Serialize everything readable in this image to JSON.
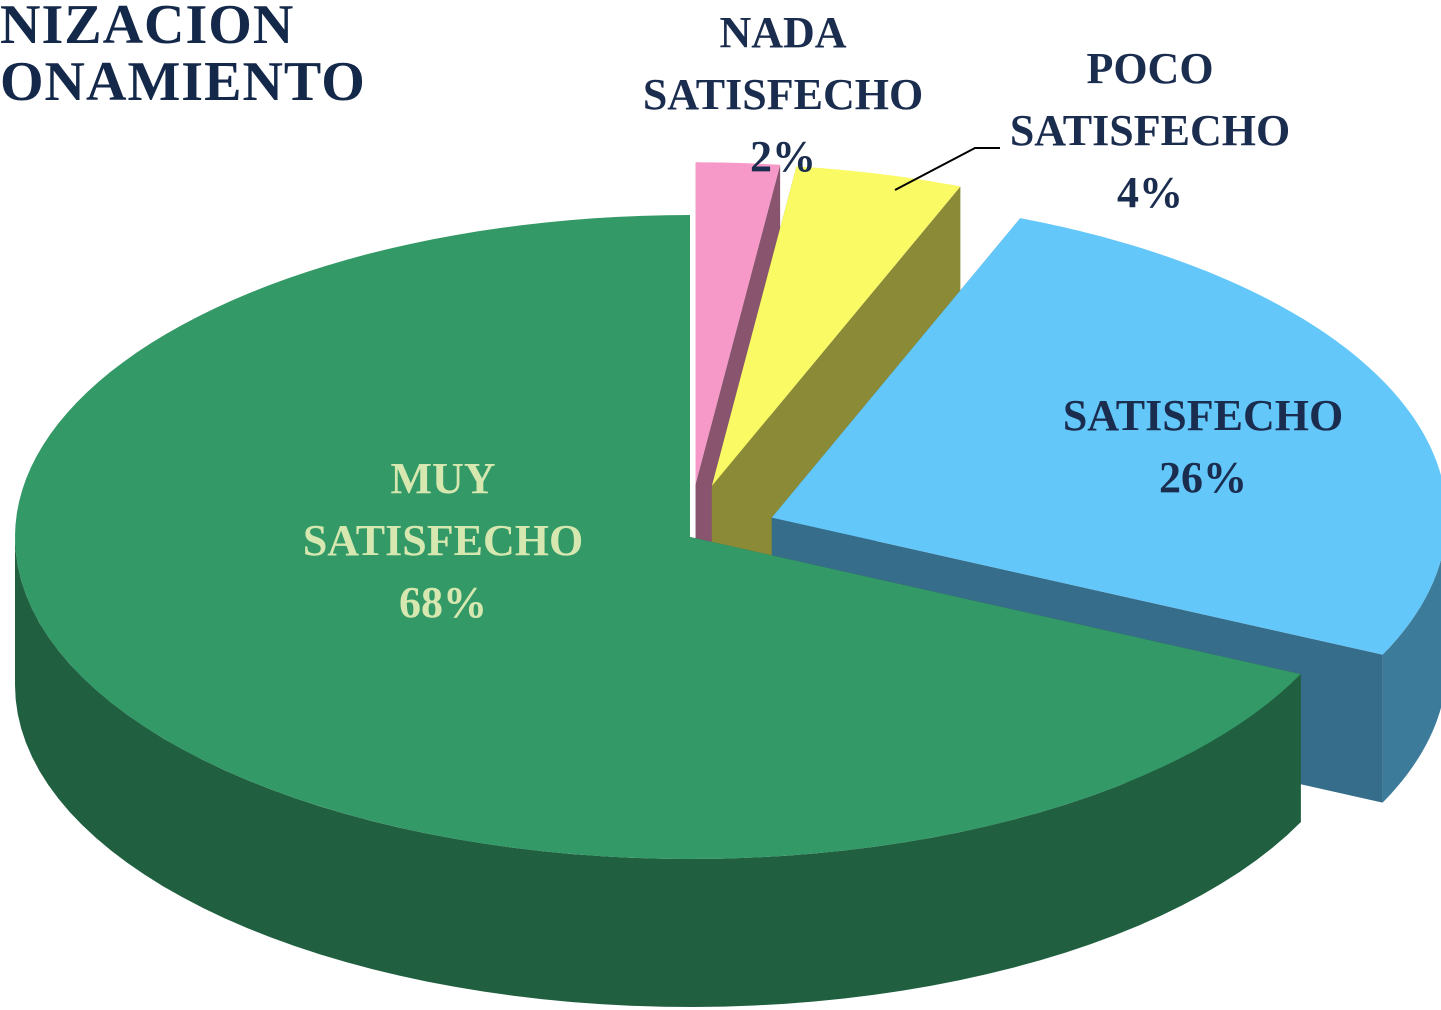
{
  "chart_data": {
    "type": "pie",
    "title_lines": [
      "NIZACION",
      "ONAMIENTO"
    ],
    "categories": [
      "NADA SATISFECHO",
      "POCO SATISFECHO",
      "SATISFECHO",
      "MUY SATISFECHO"
    ],
    "values": [
      2,
      4,
      26,
      68
    ],
    "value_labels": [
      "2%",
      "4%",
      "26%",
      "68%"
    ],
    "colors": [
      "#f799c8",
      "#fafa64",
      "#63c7fa",
      "#339966"
    ]
  }
}
